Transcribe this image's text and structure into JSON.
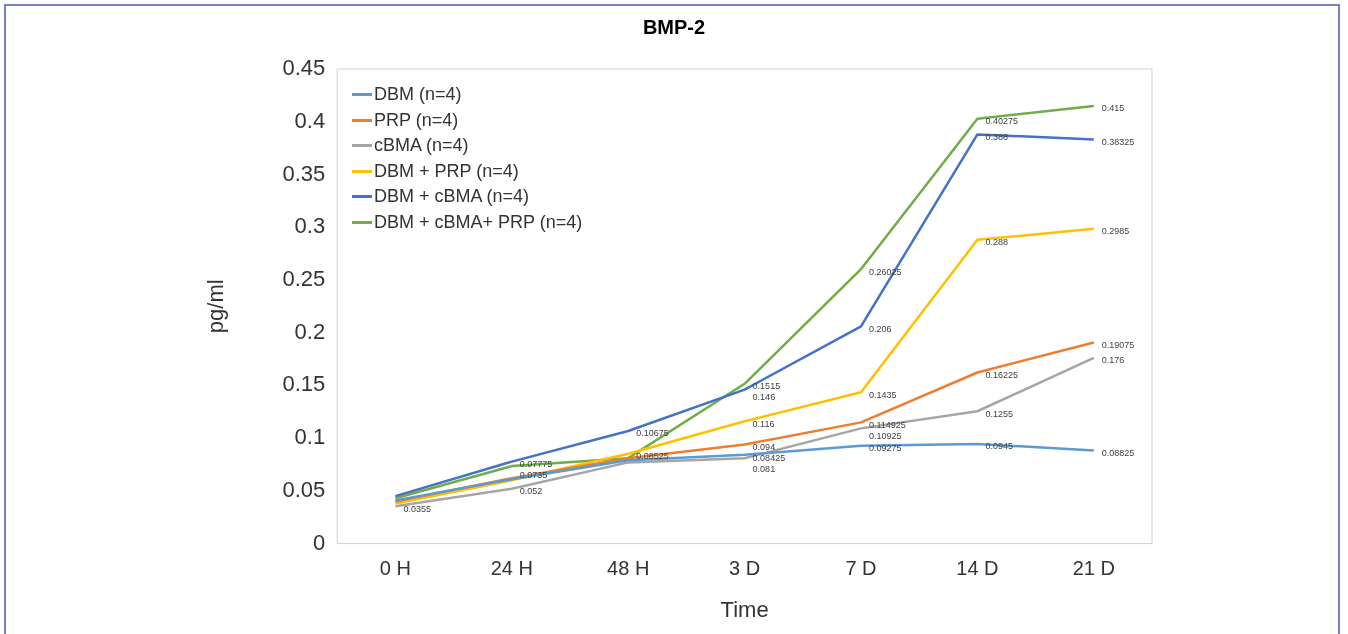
{
  "chart_data": {
    "type": "line",
    "title": "BMP-2",
    "xlabel": "Time",
    "ylabel": "pg/ml",
    "categories": [
      "0 H",
      "24 H",
      "48 H",
      "3 D",
      "7 D",
      "14 D",
      "21 D"
    ],
    "ylim": [
      0,
      0.45
    ],
    "yticks": [
      0,
      0.05,
      0.1,
      0.15,
      0.2,
      0.25,
      0.3,
      0.35,
      0.4,
      0.45
    ],
    "grid": false,
    "legend": "top left",
    "marker": "none",
    "line_style": "solid",
    "series": [
      {
        "name": "DBM (n=4)",
        "color": "#5b9bd5",
        "values": [
          0.041,
          0.061,
          0.079,
          0.08425,
          0.09275,
          0.0945,
          0.08825
        ],
        "value_labels": [
          null,
          null,
          null,
          "0.08425",
          "0.09275",
          "0.0945",
          "0.08825"
        ]
      },
      {
        "name": "PRP (n=4)",
        "color": "#ed7d31",
        "values": [
          0.04,
          0.062,
          0.081,
          0.094,
          0.114925,
          0.16225,
          0.19075
        ],
        "value_labels": [
          null,
          null,
          null,
          "0.094",
          "0.114925",
          "0.16225",
          "0.19075"
        ]
      },
      {
        "name": "cBMA (n=4)",
        "color": "#a5a5a5",
        "values": [
          0.0355,
          0.052,
          0.077,
          0.081,
          0.10925,
          0.1255,
          0.176
        ],
        "value_labels": [
          "0.0355",
          "0.052",
          null,
          "0.081",
          "0.10925",
          "0.1255",
          "0.176"
        ]
      },
      {
        "name": "DBM + PRP (n=4)",
        "color": "#ffc000",
        "values": [
          0.038,
          0.06,
          0.08525,
          0.116,
          0.1435,
          0.288,
          0.2985
        ],
        "value_labels": [
          null,
          null,
          "0.08525",
          "0.116",
          "0.1435",
          "0.288",
          "0.2985"
        ]
      },
      {
        "name": "DBM + cBMA (n=4)",
        "color": "#4472c4",
        "values": [
          0.045,
          0.07775,
          0.10675,
          0.146,
          0.206,
          0.388,
          0.38325
        ],
        "value_labels": [
          null,
          "0.07775",
          "0.10675",
          "0.146",
          "0.206",
          "0.388",
          "0.38325"
        ]
      },
      {
        "name": "DBM + cBMA+ PRP (n=4)",
        "color": "#70ad47",
        "values": [
          0.043,
          0.0735,
          0.081,
          0.1515,
          0.26025,
          0.40275,
          0.415
        ],
        "value_labels": [
          null,
          "0.0735",
          null,
          "0.1515",
          "0.26025",
          "0.40275",
          "0.415"
        ]
      }
    ]
  }
}
